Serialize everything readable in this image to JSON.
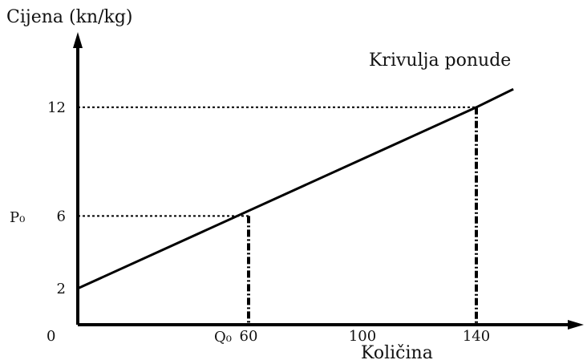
{
  "chart_data": {
    "type": "line",
    "ylabel": "Cijena (kn/kg)",
    "xlabel": "Količina",
    "origin_label": "0",
    "series": [
      {
        "name": "Krivulja ponude",
        "x": [
          0,
          140,
          153
        ],
        "y": [
          2,
          12,
          13
        ]
      }
    ],
    "points": [
      {
        "x": 60,
        "y": 6,
        "x_label": "Q₀",
        "y_label": "P₀"
      },
      {
        "x": 140,
        "y": 12
      }
    ],
    "x_ticks": [
      60,
      100,
      140
    ],
    "y_ticks": [
      2,
      6,
      12
    ],
    "xlim": [
      0,
      165
    ],
    "ylim": [
      0,
      19
    ],
    "grid": false,
    "colors": {
      "line": "#000000",
      "guides": "#000000"
    }
  }
}
